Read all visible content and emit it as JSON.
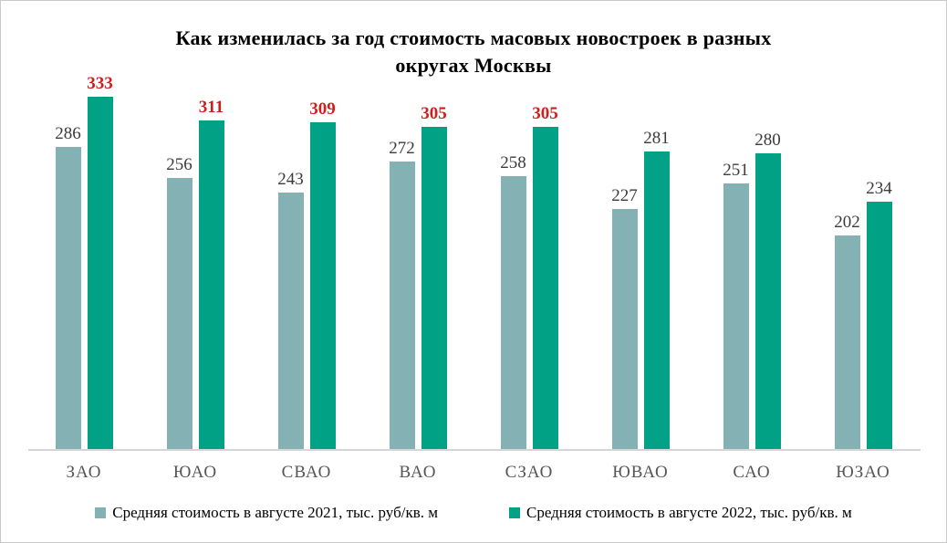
{
  "title": {
    "line1": "Как изменилась за год стоимость масовых новостроек в разных",
    "line2": "округах Москвы"
  },
  "legend": {
    "items": [
      {
        "label": "Средняя стоимость в августе 2021, тыс. руб/кв. м",
        "color": "#84B1B4"
      },
      {
        "label": "Средняя стоимость в августе 2022, тыс. руб/кв. м",
        "color": "#00A185"
      }
    ],
    "position": "bottom"
  },
  "chart_data": {
    "type": "bar",
    "title": "Как изменилась за год стоимость масовых новостроек в разных округах Москвы",
    "categories": [
      "ЗАО",
      "ЮАО",
      "СВАО",
      "ВАО",
      "СЗАО",
      "ЮВАО",
      "САО",
      "ЮЗАО"
    ],
    "series": [
      {
        "name": "Средняя стоимость в августе 2021, тыс. руб/кв. м",
        "color": "#84B1B4",
        "values": [
          286,
          256,
          243,
          272,
          258,
          227,
          251,
          202
        ],
        "label_highlight": [
          false,
          false,
          false,
          false,
          false,
          false,
          false,
          false
        ]
      },
      {
        "name": "Средняя стоимость в августе 2022, тыс. руб/кв. м",
        "color": "#00A185",
        "values": [
          333,
          311,
          309,
          305,
          305,
          281,
          280,
          234
        ],
        "label_highlight": [
          true,
          true,
          true,
          true,
          true,
          false,
          false,
          false
        ]
      }
    ],
    "xlabel": "",
    "ylabel": "",
    "ylim": [
      0,
      333
    ],
    "grid": false,
    "y_axis_visible": false,
    "data_labels": "outside-end",
    "legend_position": "bottom"
  },
  "colors": {
    "bar_2021": "#84B1B4",
    "bar_2022": "#00A185",
    "value_label": "#3B3B3B",
    "highlight_label": "#CE1F1C",
    "axis_line": "#D6D6D6",
    "x_tick_label": "#565656",
    "title": "#000000",
    "background": "#FFFFFF",
    "border": "#C9C9C9"
  }
}
